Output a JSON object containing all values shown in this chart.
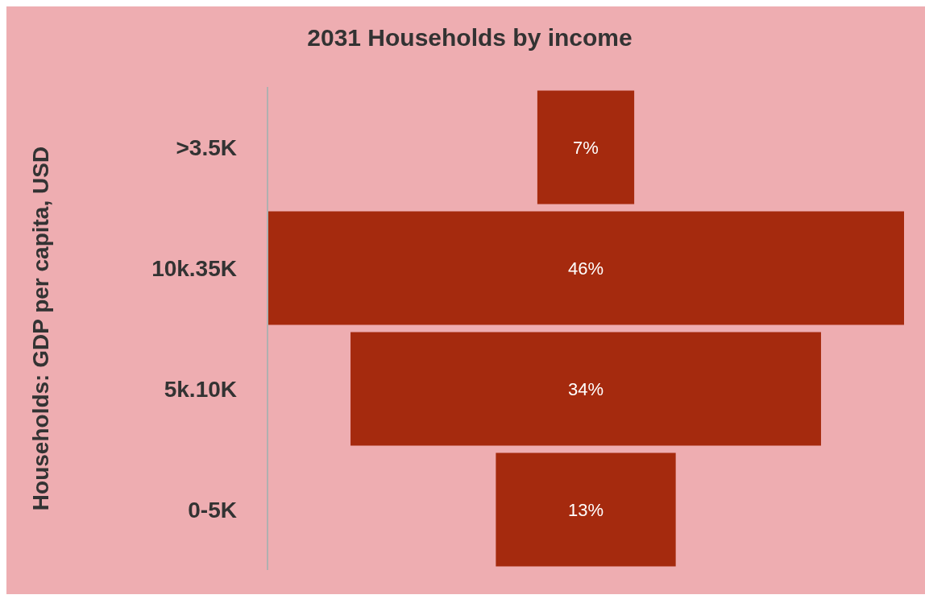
{
  "chart_data": {
    "type": "other",
    "title": "2031 Households by income",
    "ylabel": "Households: GDP per capita, USD",
    "categories": [
      ">3.5K",
      "10k.35K",
      "5k.10K",
      "0-5K"
    ],
    "values": [
      7,
      46,
      34,
      13
    ],
    "color": "#a52a0e",
    "value_labels": [
      "7%",
      "46%",
      "34%",
      "13%"
    ]
  }
}
